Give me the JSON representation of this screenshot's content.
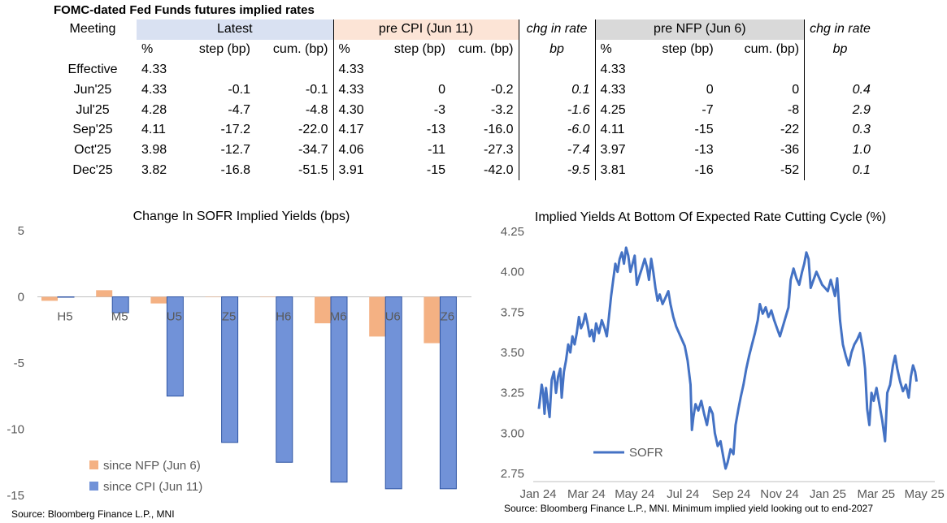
{
  "table": {
    "title": "FOMC-dated Fed Funds futures implied rates",
    "header_meeting": "Meeting",
    "groups": {
      "latest": "Latest",
      "pre_cpi": "pre CPI (Jun 11)",
      "chg1": "chg in rate",
      "pre_nfp": "pre NFP (Jun 6)",
      "chg2": "chg in rate"
    },
    "sub": {
      "pct": "%",
      "step": "step (bp)",
      "cum": "cum. (bp)",
      "bp": "bp"
    },
    "rows": [
      {
        "meeting": "Effective",
        "l_pct": "4.33",
        "l_step": "",
        "l_cum": "",
        "c_pct": "4.33",
        "c_step": "",
        "c_cum": "",
        "chg1": "",
        "n_pct": "4.33",
        "n_step": "",
        "n_cum": "",
        "chg2": ""
      },
      {
        "meeting": "Jun'25",
        "l_pct": "4.33",
        "l_step": "-0.1",
        "l_cum": "-0.1",
        "c_pct": "4.33",
        "c_step": "0",
        "c_cum": "-0.2",
        "chg1": "0.1",
        "n_pct": "4.33",
        "n_step": "0",
        "n_cum": "0",
        "chg2": "0.4"
      },
      {
        "meeting": "Jul'25",
        "l_pct": "4.28",
        "l_step": "-4.7",
        "l_cum": "-4.8",
        "c_pct": "4.30",
        "c_step": "-3",
        "c_cum": "-3.2",
        "chg1": "-1.6",
        "n_pct": "4.25",
        "n_step": "-7",
        "n_cum": "-8",
        "chg2": "2.9"
      },
      {
        "meeting": "Sep'25",
        "l_pct": "4.11",
        "l_step": "-17.2",
        "l_cum": "-22.0",
        "c_pct": "4.17",
        "c_step": "-13",
        "c_cum": "-16.0",
        "chg1": "-6.0",
        "n_pct": "4.11",
        "n_step": "-15",
        "n_cum": "-22",
        "chg2": "0.3"
      },
      {
        "meeting": "Oct'25",
        "l_pct": "3.98",
        "l_step": "-12.7",
        "l_cum": "-34.7",
        "c_pct": "4.06",
        "c_step": "-11",
        "c_cum": "-27.3",
        "chg1": "-7.4",
        "n_pct": "3.97",
        "n_step": "-13",
        "n_cum": "-36",
        "chg2": "1.0"
      },
      {
        "meeting": "Dec'25",
        "l_pct": "3.82",
        "l_step": "-16.8",
        "l_cum": "-51.5",
        "c_pct": "3.91",
        "c_step": "-15",
        "c_cum": "-42.0",
        "chg1": "-9.5",
        "n_pct": "3.81",
        "n_step": "-16",
        "n_cum": "-52",
        "chg2": "0.1"
      }
    ]
  },
  "chart_data": [
    {
      "type": "bar",
      "title": "Change In SOFR Implied Yields (bps)",
      "categories": [
        "H5",
        "M5",
        "U5",
        "Z5",
        "H6",
        "M6",
        "U6",
        "Z6"
      ],
      "series": [
        {
          "name": "since NFP (Jun 6)",
          "color": "#f4b183",
          "values": [
            -0.3,
            0.5,
            -0.5,
            0,
            0,
            -2.0,
            -3.0,
            -3.5
          ]
        },
        {
          "name": "since CPI (Jun 11)",
          "color": "#7192d8",
          "values": [
            0,
            -1.2,
            -7.5,
            -11.0,
            -12.5,
            -14.0,
            -14.5,
            -14.5
          ]
        }
      ],
      "ylim": [
        -15,
        5
      ],
      "yticks": [
        "5",
        "0",
        "-5",
        "-10",
        "-15"
      ],
      "legend": "bottom-left",
      "source": "Source: Bloomberg Finance L.P., MNI"
    },
    {
      "type": "line",
      "title": "Implied Yields At Bottom Of Expected Rate Cutting Cycle (%)",
      "series": [
        {
          "name": "SOFR",
          "color": "#4472c4",
          "points": [
            [
              "2024-01-02",
              3.15
            ],
            [
              "2024-01-04",
              3.22
            ],
            [
              "2024-01-06",
              3.3
            ],
            [
              "2024-01-08",
              3.25
            ],
            [
              "2024-01-10",
              3.12
            ],
            [
              "2024-01-12",
              3.28
            ],
            [
              "2024-01-14",
              3.2
            ],
            [
              "2024-01-17",
              3.1
            ],
            [
              "2024-01-20",
              3.33
            ],
            [
              "2024-01-23",
              3.38
            ],
            [
              "2024-01-26",
              3.25
            ],
            [
              "2024-01-29",
              3.35
            ],
            [
              "2024-02-01",
              3.4
            ],
            [
              "2024-02-03",
              3.22
            ],
            [
              "2024-02-06",
              3.38
            ],
            [
              "2024-02-09",
              3.45
            ],
            [
              "2024-02-12",
              3.55
            ],
            [
              "2024-02-15",
              3.5
            ],
            [
              "2024-02-18",
              3.6
            ],
            [
              "2024-02-21",
              3.55
            ],
            [
              "2024-02-24",
              3.62
            ],
            [
              "2024-02-27",
              3.72
            ],
            [
              "2024-03-01",
              3.65
            ],
            [
              "2024-03-04",
              3.68
            ],
            [
              "2024-03-07",
              3.74
            ],
            [
              "2024-03-10",
              3.68
            ],
            [
              "2024-03-13",
              3.6
            ],
            [
              "2024-03-16",
              3.64
            ],
            [
              "2024-03-19",
              3.57
            ],
            [
              "2024-03-22",
              3.68
            ],
            [
              "2024-03-26",
              3.62
            ],
            [
              "2024-03-30",
              3.7
            ],
            [
              "2024-04-03",
              3.65
            ],
            [
              "2024-04-06",
              3.6
            ],
            [
              "2024-04-09",
              3.72
            ],
            [
              "2024-04-12",
              3.85
            ],
            [
              "2024-04-15",
              3.95
            ],
            [
              "2024-04-18",
              4.05
            ],
            [
              "2024-04-21",
              4.0
            ],
            [
              "2024-04-24",
              4.08
            ],
            [
              "2024-04-27",
              4.12
            ],
            [
              "2024-04-30",
              4.05
            ],
            [
              "2024-05-03",
              4.15
            ],
            [
              "2024-05-06",
              4.1
            ],
            [
              "2024-05-09",
              4.0
            ],
            [
              "2024-05-12",
              4.05
            ],
            [
              "2024-05-15",
              4.1
            ],
            [
              "2024-05-18",
              3.92
            ],
            [
              "2024-05-22",
              3.98
            ],
            [
              "2024-05-25",
              4.02
            ],
            [
              "2024-05-29",
              4.08
            ],
            [
              "2024-06-01",
              4.03
            ],
            [
              "2024-06-04",
              3.95
            ],
            [
              "2024-06-07",
              4.08
            ],
            [
              "2024-06-10",
              4.0
            ],
            [
              "2024-06-13",
              3.9
            ],
            [
              "2024-06-16",
              3.82
            ],
            [
              "2024-06-19",
              3.86
            ],
            [
              "2024-06-23",
              3.8
            ],
            [
              "2024-06-27",
              3.84
            ],
            [
              "2024-07-01",
              3.88
            ],
            [
              "2024-07-04",
              3.8
            ],
            [
              "2024-07-08",
              3.72
            ],
            [
              "2024-07-12",
              3.66
            ],
            [
              "2024-07-16",
              3.62
            ],
            [
              "2024-07-20",
              3.58
            ],
            [
              "2024-07-24",
              3.54
            ],
            [
              "2024-07-28",
              3.45
            ],
            [
              "2024-08-01",
              3.3
            ],
            [
              "2024-08-03",
              3.02
            ],
            [
              "2024-08-05",
              3.1
            ],
            [
              "2024-08-08",
              3.18
            ],
            [
              "2024-08-12",
              3.14
            ],
            [
              "2024-08-16",
              3.2
            ],
            [
              "2024-08-20",
              3.12
            ],
            [
              "2024-08-24",
              3.05
            ],
            [
              "2024-08-28",
              3.16
            ],
            [
              "2024-09-01",
              3.12
            ],
            [
              "2024-09-04",
              3.0
            ],
            [
              "2024-09-08",
              2.92
            ],
            [
              "2024-09-12",
              2.95
            ],
            [
              "2024-09-16",
              2.85
            ],
            [
              "2024-09-19",
              2.78
            ],
            [
              "2024-09-22",
              2.82
            ],
            [
              "2024-09-26",
              2.9
            ],
            [
              "2024-09-30",
              2.87
            ],
            [
              "2024-10-03",
              3.05
            ],
            [
              "2024-10-07",
              3.15
            ],
            [
              "2024-10-10",
              3.22
            ],
            [
              "2024-10-14",
              3.3
            ],
            [
              "2024-10-18",
              3.4
            ],
            [
              "2024-10-22",
              3.48
            ],
            [
              "2024-10-26",
              3.55
            ],
            [
              "2024-10-30",
              3.62
            ],
            [
              "2024-11-03",
              3.7
            ],
            [
              "2024-11-06",
              3.8
            ],
            [
              "2024-11-10",
              3.74
            ],
            [
              "2024-11-14",
              3.78
            ],
            [
              "2024-11-18",
              3.72
            ],
            [
              "2024-11-22",
              3.76
            ],
            [
              "2024-11-26",
              3.7
            ],
            [
              "2024-11-30",
              3.65
            ],
            [
              "2024-12-04",
              3.6
            ],
            [
              "2024-12-08",
              3.66
            ],
            [
              "2024-12-12",
              3.72
            ],
            [
              "2024-12-16",
              3.78
            ],
            [
              "2024-12-19",
              3.95
            ],
            [
              "2024-12-23",
              4.02
            ],
            [
              "2024-12-27",
              3.96
            ],
            [
              "2024-12-31",
              3.92
            ],
            [
              "2025-01-04",
              4.0
            ],
            [
              "2025-01-07",
              4.05
            ],
            [
              "2025-01-10",
              4.12
            ],
            [
              "2025-01-13",
              4.08
            ],
            [
              "2025-01-16",
              3.9
            ],
            [
              "2025-01-20",
              3.95
            ],
            [
              "2025-01-24",
              4.0
            ],
            [
              "2025-01-28",
              3.96
            ],
            [
              "2025-02-01",
              3.92
            ],
            [
              "2025-02-05",
              3.9
            ],
            [
              "2025-02-09",
              3.88
            ],
            [
              "2025-02-13",
              3.95
            ],
            [
              "2025-02-16",
              3.9
            ],
            [
              "2025-02-19",
              3.85
            ],
            [
              "2025-02-22",
              3.96
            ],
            [
              "2025-02-26",
              3.7
            ],
            [
              "2025-03-02",
              3.55
            ],
            [
              "2025-03-06",
              3.48
            ],
            [
              "2025-03-10",
              3.42
            ],
            [
              "2025-03-14",
              3.5
            ],
            [
              "2025-03-18",
              3.55
            ],
            [
              "2025-03-22",
              3.58
            ],
            [
              "2025-03-26",
              3.62
            ],
            [
              "2025-03-30",
              3.52
            ],
            [
              "2025-04-02",
              3.4
            ],
            [
              "2025-04-05",
              3.15
            ],
            [
              "2025-04-08",
              3.05
            ],
            [
              "2025-04-11",
              3.25
            ],
            [
              "2025-04-14",
              3.2
            ],
            [
              "2025-04-18",
              3.28
            ],
            [
              "2025-04-22",
              3.18
            ],
            [
              "2025-04-26",
              3.08
            ],
            [
              "2025-04-30",
              2.95
            ],
            [
              "2025-05-03",
              3.25
            ],
            [
              "2025-05-07",
              3.3
            ],
            [
              "2025-05-11",
              3.42
            ],
            [
              "2025-05-14",
              3.48
            ],
            [
              "2025-05-17",
              3.4
            ],
            [
              "2025-05-21",
              3.32
            ],
            [
              "2025-05-25",
              3.26
            ],
            [
              "2025-05-29",
              3.3
            ],
            [
              "2025-06-02",
              3.22
            ],
            [
              "2025-06-05",
              3.35
            ],
            [
              "2025-06-08",
              3.42
            ],
            [
              "2025-06-11",
              3.38
            ],
            [
              "2025-06-13",
              3.32
            ]
          ]
        }
      ],
      "xticks": [
        "Jan 24",
        "Mar 24",
        "May 24",
        "Jul 24",
        "Sep 24",
        "Nov 24",
        "Jan 25",
        "Mar 25",
        "May 25"
      ],
      "yticks": [
        "4.25",
        "4.00",
        "3.75",
        "3.50",
        "3.25",
        "3.00",
        "2.75"
      ],
      "ylim": [
        2.75,
        4.25
      ],
      "legend": "bottom-left",
      "source": "Source: Bloomberg Finance L.P., MNI. Minimum implied yield looking out to end-2027"
    }
  ]
}
